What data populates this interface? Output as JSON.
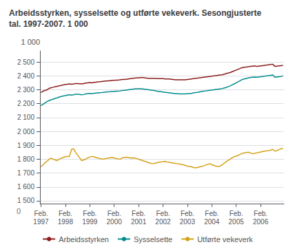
{
  "chart_data": {
    "type": "line",
    "title": "Arbeidsstyrken, sysselsette og utførte vekeverk. Sesongjusterte\ntal. 1997-2007. 1 000",
    "ylabel": "1 000",
    "annotations": [
      "0"
    ],
    "categories": [
      "Feb.\n1997",
      null,
      null,
      null,
      null,
      null,
      null,
      null,
      null,
      null,
      null,
      null,
      "Feb.\n1998",
      null,
      null,
      null,
      null,
      null,
      null,
      null,
      null,
      null,
      null,
      null,
      "Feb.\n1999",
      null,
      null,
      null,
      null,
      null,
      null,
      null,
      null,
      null,
      null,
      null,
      "Feb.\n2000",
      null,
      null,
      null,
      null,
      null,
      null,
      null,
      null,
      null,
      null,
      null,
      "Feb.\n2001",
      null,
      null,
      null,
      null,
      null,
      null,
      null,
      null,
      null,
      null,
      null,
      "Feb.\n2002",
      null,
      null,
      null,
      null,
      null,
      null,
      null,
      null,
      null,
      null,
      null,
      "Feb.\n2003",
      null,
      null,
      null,
      null,
      null,
      null,
      null,
      null,
      null,
      null,
      null,
      "Feb.\n2004",
      null,
      null,
      null,
      null,
      null,
      null,
      null,
      null,
      null,
      null,
      null,
      "Feb.\n2005",
      null,
      null,
      null,
      null,
      null,
      null,
      null,
      null,
      null,
      null,
      null,
      "Feb.\n2006",
      null,
      null,
      null,
      null,
      null,
      null,
      null,
      null,
      null,
      null,
      null
    ],
    "series": [
      {
        "name": "Arbeidsstyrken",
        "color": "#8b1a1a",
        "values": [
          2280,
          2290,
          2295,
          2300,
          2310,
          2315,
          2318,
          2322,
          2325,
          2328,
          2332,
          2335,
          2338,
          2340,
          2342,
          2340,
          2342,
          2345,
          2345,
          2344,
          2342,
          2345,
          2348,
          2350,
          2352,
          2350,
          2353,
          2355,
          2357,
          2358,
          2360,
          2362,
          2363,
          2364,
          2365,
          2368,
          2368,
          2370,
          2370,
          2372,
          2374,
          2374,
          2376,
          2378,
          2380,
          2382,
          2384,
          2386,
          2386,
          2388,
          2388,
          2386,
          2384,
          2382,
          2382,
          2382,
          2382,
          2380,
          2380,
          2380,
          2380,
          2378,
          2378,
          2378,
          2376,
          2374,
          2372,
          2372,
          2372,
          2372,
          2372,
          2372,
          2374,
          2376,
          2378,
          2380,
          2382,
          2384,
          2386,
          2388,
          2390,
          2392,
          2394,
          2396,
          2398,
          2400,
          2402,
          2404,
          2406,
          2408,
          2412,
          2416,
          2420,
          2424,
          2430,
          2436,
          2442,
          2448,
          2454,
          2460,
          2462,
          2464,
          2466,
          2468,
          2470,
          2472,
          2468,
          2470,
          2472,
          2474,
          2476,
          2478,
          2480,
          2482,
          2484,
          2468,
          2470,
          2472,
          2474,
          2476
        ]
      },
      {
        "name": "Sysselsette",
        "color": "#008b8b",
        "values": [
          2185,
          2195,
          2205,
          2215,
          2222,
          2228,
          2232,
          2238,
          2242,
          2248,
          2252,
          2255,
          2258,
          2262,
          2264,
          2262,
          2264,
          2268,
          2268,
          2267,
          2264,
          2266,
          2270,
          2272,
          2274,
          2272,
          2274,
          2276,
          2278,
          2279,
          2280,
          2282,
          2284,
          2285,
          2286,
          2288,
          2288,
          2290,
          2290,
          2292,
          2295,
          2296,
          2298,
          2300,
          2302,
          2304,
          2306,
          2308,
          2308,
          2308,
          2306,
          2304,
          2302,
          2300,
          2298,
          2296,
          2294,
          2290,
          2288,
          2286,
          2284,
          2282,
          2280,
          2278,
          2276,
          2274,
          2272,
          2272,
          2270,
          2270,
          2270,
          2270,
          2272,
          2272,
          2274,
          2278,
          2280,
          2282,
          2285,
          2288,
          2290,
          2292,
          2294,
          2296,
          2298,
          2300,
          2302,
          2304,
          2306,
          2308,
          2312,
          2316,
          2322,
          2328,
          2335,
          2342,
          2350,
          2358,
          2366,
          2374,
          2378,
          2382,
          2386,
          2388,
          2390,
          2392,
          2390,
          2392,
          2394,
          2396,
          2398,
          2400,
          2402,
          2404,
          2406,
          2390,
          2392,
          2394,
          2396,
          2400
        ]
      },
      {
        "name": "Utførte vekeverk",
        "color": "#d4a017",
        "values": [
          1745,
          1760,
          1775,
          1785,
          1800,
          1808,
          1800,
          1795,
          1790,
          1800,
          1808,
          1812,
          1818,
          1820,
          1820,
          1870,
          1875,
          1850,
          1830,
          1810,
          1790,
          1795,
          1800,
          1810,
          1815,
          1820,
          1818,
          1812,
          1808,
          1805,
          1800,
          1802,
          1805,
          1808,
          1810,
          1812,
          1808,
          1805,
          1802,
          1800,
          1810,
          1812,
          1815,
          1812,
          1808,
          1810,
          1808,
          1805,
          1800,
          1795,
          1790,
          1785,
          1780,
          1775,
          1770,
          1768,
          1770,
          1775,
          1778,
          1780,
          1782,
          1785,
          1780,
          1778,
          1775,
          1772,
          1770,
          1768,
          1765,
          1762,
          1760,
          1755,
          1750,
          1748,
          1745,
          1740,
          1738,
          1740,
          1745,
          1748,
          1752,
          1758,
          1762,
          1768,
          1760,
          1755,
          1750,
          1748,
          1750,
          1758,
          1770,
          1780,
          1790,
          1800,
          1810,
          1818,
          1822,
          1828,
          1835,
          1842,
          1845,
          1848,
          1850,
          1845,
          1840,
          1842,
          1845,
          1848,
          1852,
          1855,
          1858,
          1860,
          1862,
          1865,
          1870,
          1858,
          1862,
          1868,
          1875,
          1878
        ]
      }
    ],
    "ylim": [
      1480,
      2580
    ],
    "yticks": [
      {
        "value": 1500,
        "label": "1 500"
      },
      {
        "value": 1600,
        "label": "1 600"
      },
      {
        "value": 1700,
        "label": "1 700"
      },
      {
        "value": 1800,
        "label": "1 800"
      },
      {
        "value": 1900,
        "label": "1 900"
      },
      {
        "value": 2000,
        "label": "2 000"
      },
      {
        "value": 2100,
        "label": "2 100"
      },
      {
        "value": 2200,
        "label": "2 200"
      },
      {
        "value": 2300,
        "label": "2 300"
      },
      {
        "value": 2400,
        "label": "2 400"
      },
      {
        "value": 2500,
        "label": "2 500"
      }
    ],
    "grid": true,
    "legend": "bottom"
  }
}
